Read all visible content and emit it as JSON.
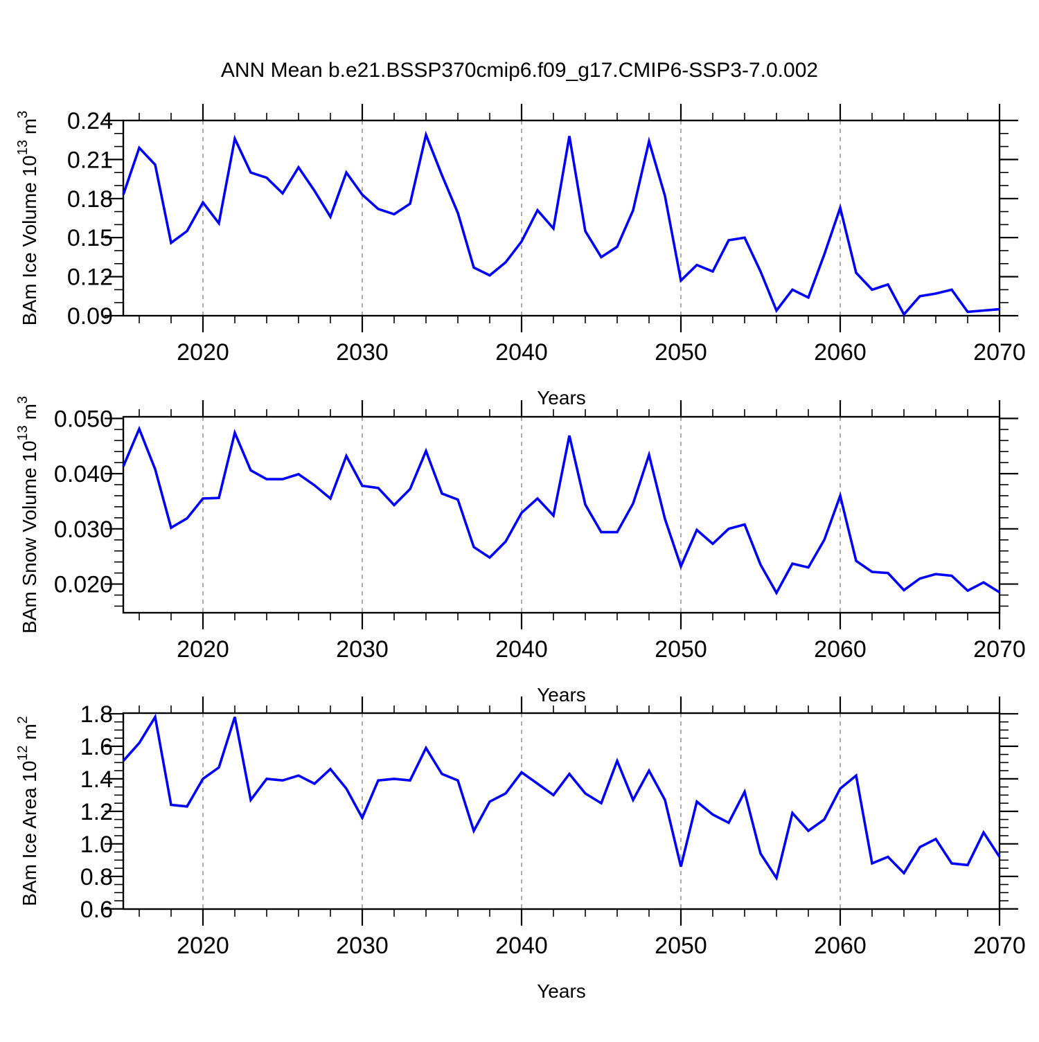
{
  "title": "ANN Mean b.e21.BSSP370cmip6.f09_g17.CMIP6-SSP3-7.0.002",
  "colors": {
    "line": "#0000ff",
    "grid": "#808080",
    "axis": "#000000",
    "background": "#ffffff"
  },
  "x_axis": {
    "label": "Years",
    "start": 2015,
    "end": 2070,
    "major_ticks": [
      2020,
      2030,
      2040,
      2050,
      2060,
      2070
    ],
    "minor_step": 2,
    "gridline_years": [
      2020,
      2030,
      2040,
      2050,
      2060
    ]
  },
  "years": [
    2015,
    2016,
    2017,
    2018,
    2019,
    2020,
    2021,
    2022,
    2023,
    2024,
    2025,
    2026,
    2027,
    2028,
    2029,
    2030,
    2031,
    2032,
    2033,
    2034,
    2035,
    2036,
    2037,
    2038,
    2039,
    2040,
    2041,
    2042,
    2043,
    2044,
    2045,
    2046,
    2047,
    2048,
    2049,
    2050,
    2051,
    2052,
    2053,
    2054,
    2055,
    2056,
    2057,
    2058,
    2059,
    2060,
    2061,
    2062,
    2063,
    2064,
    2065,
    2066,
    2067,
    2068,
    2069,
    2070
  ],
  "chart_data": [
    {
      "type": "line",
      "name": "ice-volume",
      "ylabel": "BAm Ice Volume 10^13 m^3",
      "ylabel_parts": [
        {
          "t": "BAm Ice Volume 10"
        },
        {
          "t": "13",
          "sup": true
        },
        {
          "t": " m"
        },
        {
          "t": "3",
          "sup": true
        }
      ],
      "xlabel": "Years",
      "ylim": [
        0.09,
        0.24
      ],
      "y_major_ticks": [
        0.09,
        0.12,
        0.15,
        0.18,
        0.21,
        0.24
      ],
      "y_tick_labels": [
        "0.09",
        "0.12",
        "0.15",
        "0.18",
        "0.21",
        "0.24"
      ],
      "y_minor_step": 0.01,
      "grid": "vertical-dashed",
      "legend": "none",
      "values": [
        0.183,
        0.219,
        0.206,
        0.146,
        0.155,
        0.177,
        0.161,
        0.226,
        0.2,
        0.196,
        0.184,
        0.204,
        0.186,
        0.166,
        0.2,
        0.183,
        0.172,
        0.168,
        0.176,
        0.229,
        0.198,
        0.169,
        0.127,
        0.121,
        0.131,
        0.147,
        0.171,
        0.157,
        0.228,
        0.155,
        0.135,
        0.143,
        0.171,
        0.224,
        0.182,
        0.117,
        0.129,
        0.124,
        0.148,
        0.15,
        0.124,
        0.094,
        0.11,
        0.104,
        0.137,
        0.173,
        0.123,
        0.11,
        0.114,
        0.091,
        0.105,
        0.107,
        0.11,
        0.093,
        0.094,
        0.095
      ]
    },
    {
      "type": "line",
      "name": "snow-volume",
      "ylabel": "BAm Snow Volume 10^13 m^3",
      "ylabel_parts": [
        {
          "t": "BAm Snow Volume 10"
        },
        {
          "t": "13",
          "sup": true
        },
        {
          "t": " m"
        },
        {
          "t": "3",
          "sup": true
        }
      ],
      "xlabel": "Years",
      "ylim": [
        0.015,
        0.0505
      ],
      "y_major_ticks": [
        0.02,
        0.03,
        0.04,
        0.05
      ],
      "y_tick_labels": [
        "0.020",
        "0.030",
        "0.040",
        "0.050"
      ],
      "y_minor_step": 0.002,
      "grid": "vertical-dashed",
      "legend": "none",
      "values": [
        0.0413,
        0.0481,
        0.0408,
        0.0302,
        0.0319,
        0.0355,
        0.0356,
        0.0474,
        0.0406,
        0.039,
        0.039,
        0.0399,
        0.0379,
        0.0355,
        0.0432,
        0.0378,
        0.0374,
        0.0343,
        0.0372,
        0.0441,
        0.0364,
        0.0353,
        0.0267,
        0.0248,
        0.0277,
        0.0329,
        0.0355,
        0.0324,
        0.0469,
        0.0344,
        0.0294,
        0.0294,
        0.0346,
        0.0434,
        0.0318,
        0.0232,
        0.0298,
        0.0273,
        0.03,
        0.0308,
        0.0235,
        0.0184,
        0.0237,
        0.023,
        0.028,
        0.036,
        0.0242,
        0.0222,
        0.022,
        0.0189,
        0.021,
        0.0218,
        0.0215,
        0.0188,
        0.0203,
        0.0185
      ]
    },
    {
      "type": "line",
      "name": "ice-area",
      "ylabel": "BAm Ice Area 10^12 m^2",
      "ylabel_parts": [
        {
          "t": "BAm Ice Area 10"
        },
        {
          "t": "12",
          "sup": true
        },
        {
          "t": " m"
        },
        {
          "t": "2",
          "sup": true
        }
      ],
      "xlabel": "Years",
      "ylim": [
        0.6,
        1.8
      ],
      "y_major_ticks": [
        0.6,
        0.8,
        1.0,
        1.2,
        1.4,
        1.6,
        1.8
      ],
      "y_tick_labels": [
        "0.6",
        "0.8",
        "1.0",
        "1.2",
        "1.4",
        "1.6",
        "1.8"
      ],
      "y_minor_step": 0.05,
      "grid": "vertical-dashed",
      "legend": "none",
      "values": [
        1.51,
        1.62,
        1.78,
        1.24,
        1.23,
        1.4,
        1.47,
        1.78,
        1.27,
        1.4,
        1.39,
        1.42,
        1.37,
        1.46,
        1.34,
        1.16,
        1.39,
        1.4,
        1.39,
        1.59,
        1.43,
        1.39,
        1.08,
        1.26,
        1.31,
        1.44,
        1.37,
        1.3,
        1.43,
        1.31,
        1.25,
        1.51,
        1.27,
        1.45,
        1.27,
        0.86,
        1.26,
        1.18,
        1.13,
        1.32,
        0.94,
        0.79,
        1.19,
        1.08,
        1.15,
        1.34,
        1.42,
        0.88,
        0.92,
        0.82,
        0.98,
        1.03,
        0.88,
        0.87,
        1.07,
        0.92
      ]
    }
  ]
}
